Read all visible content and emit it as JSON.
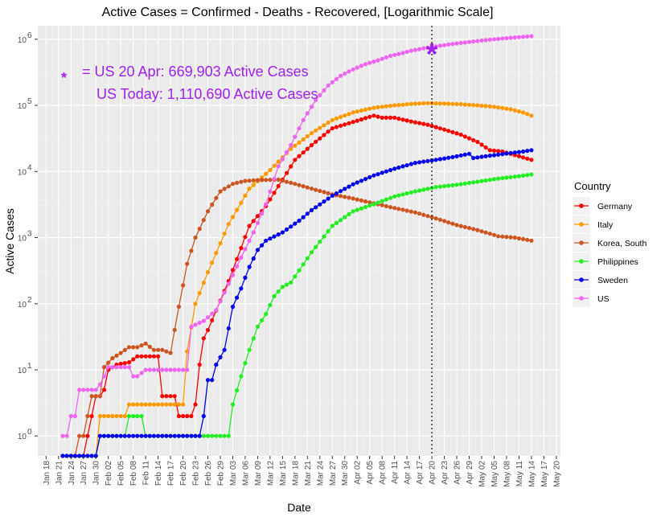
{
  "chart_data": {
    "type": "line",
    "title": "Active Cases = Confirmed - Deaths - Recovered, [Logarithmic Scale]",
    "xlabel": "Date",
    "ylabel": "Active Cases",
    "y_scale": "log10",
    "ylim": [
      0.5,
      1600000
    ],
    "y_ticks": [
      {
        "value": 1,
        "label": "10",
        "exp": "0"
      },
      {
        "value": 10,
        "label": "10",
        "exp": "1"
      },
      {
        "value": 100,
        "label": "10",
        "exp": "2"
      },
      {
        "value": 1000,
        "label": "10",
        "exp": "3"
      },
      {
        "value": 10000,
        "label": "10",
        "exp": "4"
      },
      {
        "value": 100000,
        "label": "10",
        "exp": "5"
      },
      {
        "value": 1000000,
        "label": "10",
        "exp": "6"
      }
    ],
    "x_range": [
      "2020-01-16",
      "2020-05-21"
    ],
    "x_ticks": [
      "2020-01-18",
      "2020-01-21",
      "2020-01-24",
      "2020-01-27",
      "2020-01-30",
      "2020-02-02",
      "2020-02-05",
      "2020-02-08",
      "2020-02-11",
      "2020-02-14",
      "2020-02-17",
      "2020-02-20",
      "2020-02-23",
      "2020-02-26",
      "2020-02-29",
      "2020-03-03",
      "2020-03-06",
      "2020-03-09",
      "2020-03-12",
      "2020-03-15",
      "2020-03-18",
      "2020-03-21",
      "2020-03-24",
      "2020-03-27",
      "2020-03-30",
      "2020-04-02",
      "2020-04-05",
      "2020-04-08",
      "2020-04-11",
      "2020-04-14",
      "2020-04-17",
      "2020-04-20",
      "2020-04-23",
      "2020-04-26",
      "2020-04-29",
      "2020-05-02",
      "2020-05-05",
      "2020-05-08",
      "2020-05-11",
      "2020-05-14",
      "2020-05-17",
      "2020-05-20"
    ],
    "x_tick_labels": [
      "Jan 18",
      "Jan 21",
      "Jan 24",
      "Jan 27",
      "Jan 30",
      "Feb 02",
      "Feb 05",
      "Feb 08",
      "Feb 11",
      "Feb 14",
      "Feb 17",
      "Feb 20",
      "Feb 23",
      "Feb 26",
      "Feb 29",
      "Mar 03",
      "Mar 06",
      "Mar 09",
      "Mar 12",
      "Mar 15",
      "Mar 18",
      "Mar 21",
      "Mar 24",
      "Mar 27",
      "Mar 30",
      "Apr 02",
      "Apr 05",
      "Apr 08",
      "Apr 11",
      "Apr 14",
      "Apr 17",
      "Apr 20",
      "Apr 23",
      "Apr 26",
      "Apr 29",
      "May 02",
      "May 05",
      "May 08",
      "May 11",
      "May 14",
      "May 17",
      "May 20"
    ],
    "start_date": "2020-01-22",
    "grid": true,
    "legend": {
      "title": "Country",
      "position": "right"
    },
    "vline": {
      "date": "2020-04-20",
      "style": "dotted"
    },
    "star_marker": {
      "date": "2020-04-20",
      "value": 669903,
      "color": "#a020f0"
    },
    "annotations": [
      {
        "text": "= US 20 Apr: 669,903 Active Cases",
        "color": "#a020f0"
      },
      {
        "text": "US Today: 1,110,690 Active Cases",
        "color": "#a020f0"
      }
    ],
    "series": [
      {
        "name": "Germany",
        "color": "#ff0000",
        "keypoints": [
          [
            0,
            0.5
          ],
          [
            5,
            0.5
          ],
          [
            6,
            1
          ],
          [
            8,
            4
          ],
          [
            9,
            4
          ],
          [
            10,
            5
          ],
          [
            11,
            10
          ],
          [
            13,
            12
          ],
          [
            16,
            13
          ],
          [
            18,
            16
          ],
          [
            23,
            16
          ],
          [
            24,
            4
          ],
          [
            27,
            4
          ],
          [
            28,
            2
          ],
          [
            31,
            2
          ],
          [
            32,
            3
          ],
          [
            33,
            12
          ],
          [
            34,
            30
          ],
          [
            35,
            40
          ],
          [
            40,
            220
          ],
          [
            45,
            1500
          ],
          [
            49,
            3000
          ],
          [
            52,
            6000
          ],
          [
            56,
            15000
          ],
          [
            60,
            25000
          ],
          [
            65,
            45000
          ],
          [
            70,
            56000
          ],
          [
            74,
            67000
          ],
          [
            75,
            70000
          ],
          [
            77,
            65000
          ],
          [
            80,
            65000
          ],
          [
            84,
            57000
          ],
          [
            88,
            51000
          ],
          [
            92,
            43000
          ],
          [
            96,
            36000
          ],
          [
            100,
            28000
          ],
          [
            103,
            21000
          ],
          [
            106,
            20000
          ],
          [
            110,
            17000
          ],
          [
            113,
            15000
          ]
        ]
      },
      {
        "name": "Italy",
        "color": "#ff9900",
        "keypoints": [
          [
            0,
            0.5
          ],
          [
            8,
            0.5
          ],
          [
            9,
            2
          ],
          [
            15,
            2
          ],
          [
            16,
            3
          ],
          [
            29,
            3
          ],
          [
            30,
            19
          ],
          [
            32,
            100
          ],
          [
            35,
            300
          ],
          [
            40,
            1600
          ],
          [
            45,
            5500
          ],
          [
            50,
            10500
          ],
          [
            55,
            22000
          ],
          [
            60,
            38000
          ],
          [
            65,
            60000
          ],
          [
            70,
            78000
          ],
          [
            75,
            92000
          ],
          [
            80,
            100000
          ],
          [
            84,
            105000
          ],
          [
            88,
            108000
          ],
          [
            92,
            106000
          ],
          [
            96,
            104000
          ],
          [
            100,
            100000
          ],
          [
            104,
            95000
          ],
          [
            108,
            87000
          ],
          [
            111,
            78000
          ],
          [
            113,
            70000
          ]
        ]
      },
      {
        "name": "Korea, South",
        "color": "#cc5522",
        "keypoints": [
          [
            0,
            0.5
          ],
          [
            3,
            0.5
          ],
          [
            4,
            1
          ],
          [
            5,
            1
          ],
          [
            6,
            2
          ],
          [
            7,
            4
          ],
          [
            9,
            4
          ],
          [
            10,
            11
          ],
          [
            12,
            15
          ],
          [
            14,
            18
          ],
          [
            16,
            22
          ],
          [
            18,
            22
          ],
          [
            20,
            25
          ],
          [
            22,
            20
          ],
          [
            24,
            20
          ],
          [
            26,
            18
          ],
          [
            28,
            90
          ],
          [
            30,
            400
          ],
          [
            32,
            1000
          ],
          [
            35,
            2500
          ],
          [
            38,
            5000
          ],
          [
            41,
            6500
          ],
          [
            44,
            7200
          ],
          [
            47,
            7400
          ],
          [
            52,
            7500
          ],
          [
            56,
            6500
          ],
          [
            60,
            5500
          ],
          [
            65,
            4500
          ],
          [
            70,
            3900
          ],
          [
            75,
            3300
          ],
          [
            80,
            2800
          ],
          [
            85,
            2400
          ],
          [
            90,
            1950
          ],
          [
            95,
            1550
          ],
          [
            100,
            1300
          ],
          [
            105,
            1050
          ],
          [
            109,
            1000
          ],
          [
            113,
            900
          ]
        ]
      },
      {
        "name": "Philippines",
        "color": "#22ee22",
        "keypoints": [
          [
            0,
            0.5
          ],
          [
            8,
            0.5
          ],
          [
            9,
            1
          ],
          [
            15,
            1
          ],
          [
            16,
            2
          ],
          [
            19,
            2
          ],
          [
            20,
            1
          ],
          [
            40,
            1
          ],
          [
            41,
            3
          ],
          [
            43,
            8
          ],
          [
            45,
            20
          ],
          [
            47,
            45
          ],
          [
            49,
            70
          ],
          [
            51,
            130
          ],
          [
            53,
            180
          ],
          [
            55,
            210
          ],
          [
            60,
            600
          ],
          [
            65,
            1500
          ],
          [
            70,
            2500
          ],
          [
            75,
            3200
          ],
          [
            80,
            4200
          ],
          [
            85,
            5000
          ],
          [
            90,
            5800
          ],
          [
            95,
            6300
          ],
          [
            100,
            7000
          ],
          [
            105,
            7800
          ],
          [
            110,
            8500
          ],
          [
            113,
            9000
          ]
        ]
      },
      {
        "name": "Sweden",
        "color": "#0000ee",
        "keypoints": [
          [
            0,
            0.5
          ],
          [
            8,
            0.5
          ],
          [
            9,
            1
          ],
          [
            33,
            1
          ],
          [
            34,
            2
          ],
          [
            35,
            7
          ],
          [
            36,
            7
          ],
          [
            37,
            12
          ],
          [
            39,
            20
          ],
          [
            41,
            90
          ],
          [
            43,
            170
          ],
          [
            45,
            360
          ],
          [
            47,
            650
          ],
          [
            49,
            900
          ],
          [
            53,
            1200
          ],
          [
            57,
            1800
          ],
          [
            60,
            2600
          ],
          [
            65,
            4300
          ],
          [
            70,
            6400
          ],
          [
            75,
            8700
          ],
          [
            80,
            11000
          ],
          [
            85,
            13500
          ],
          [
            90,
            15000
          ],
          [
            94,
            16500
          ],
          [
            98,
            18500
          ],
          [
            99,
            16000
          ],
          [
            102,
            17000
          ],
          [
            105,
            18000
          ],
          [
            108,
            19000
          ],
          [
            111,
            20000
          ],
          [
            113,
            21000
          ]
        ]
      },
      {
        "name": "US",
        "color": "#ee66ee",
        "keypoints": [
          [
            0,
            1
          ],
          [
            1,
            1
          ],
          [
            2,
            2
          ],
          [
            3,
            2
          ],
          [
            4,
            5
          ],
          [
            8,
            5
          ],
          [
            9,
            6
          ],
          [
            10,
            8
          ],
          [
            11,
            11
          ],
          [
            16,
            11
          ],
          [
            17,
            8
          ],
          [
            18,
            8
          ],
          [
            19,
            9
          ],
          [
            20,
            10
          ],
          [
            30,
            10
          ],
          [
            31,
            45
          ],
          [
            32,
            48
          ],
          [
            34,
            55
          ],
          [
            37,
            80
          ],
          [
            40,
            200
          ],
          [
            43,
            500
          ],
          [
            46,
            1200
          ],
          [
            49,
            3200
          ],
          [
            52,
            12000
          ],
          [
            55,
            25000
          ],
          [
            58,
            60000
          ],
          [
            61,
            120000
          ],
          [
            64,
            200000
          ],
          [
            67,
            280000
          ],
          [
            70,
            350000
          ],
          [
            73,
            420000
          ],
          [
            76,
            480000
          ],
          [
            79,
            560000
          ],
          [
            82,
            620000
          ],
          [
            84,
            669903
          ],
          [
            87,
            730000
          ],
          [
            90,
            780000
          ],
          [
            93,
            830000
          ],
          [
            96,
            880000
          ],
          [
            100,
            940000
          ],
          [
            104,
            1000000
          ],
          [
            108,
            1050000
          ],
          [
            112,
            1100000
          ],
          [
            113,
            1110690
          ]
        ]
      }
    ]
  }
}
